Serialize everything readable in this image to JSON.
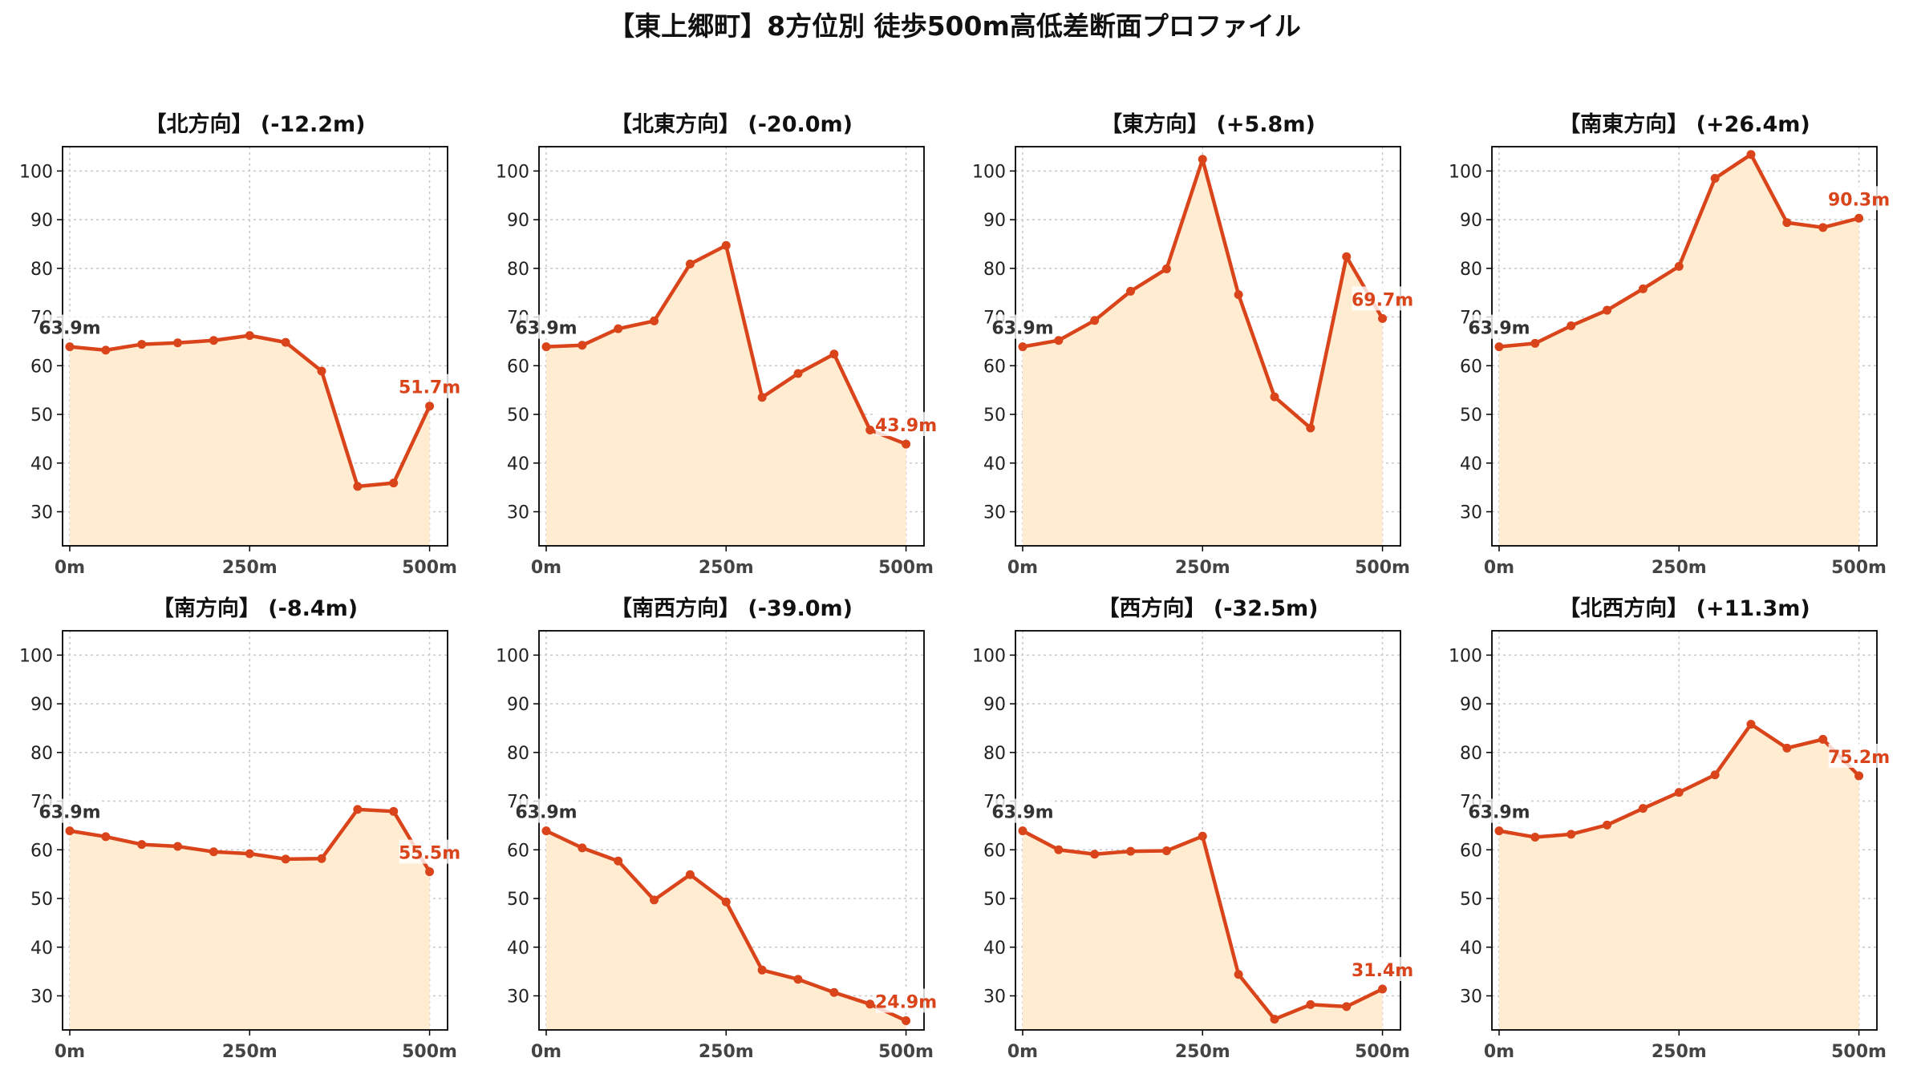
{
  "figure_title": "【東上郷町】8方位別 徒歩500m高低差断面プロファイル",
  "colors": {
    "line": "#d9441a",
    "fill": "#ffecd1",
    "start_label": "#333333",
    "end_label": "#d9441a",
    "grid": "#c8c8c8"
  },
  "chart_data": [
    {
      "type": "area",
      "title": "【北方向】 (-12.2m)",
      "x": [
        0,
        50,
        100,
        150,
        200,
        250,
        300,
        350,
        400,
        450,
        500
      ],
      "y": [
        63.9,
        63.2,
        64.4,
        64.7,
        65.2,
        66.2,
        64.8,
        58.9,
        35.2,
        35.9,
        51.7
      ],
      "x_tick_labels": [
        "0m",
        "250m",
        "500m"
      ],
      "y_ticks": [
        30,
        40,
        50,
        60,
        70,
        80,
        90,
        100
      ],
      "ylim": [
        23,
        105
      ],
      "start_label": "63.9m",
      "end_label": "51.7m",
      "grid": true
    },
    {
      "type": "area",
      "title": "【北東方向】 (-20.0m)",
      "x": [
        0,
        50,
        100,
        150,
        200,
        250,
        300,
        350,
        400,
        450,
        500
      ],
      "y": [
        63.9,
        64.2,
        67.6,
        69.2,
        80.9,
        84.7,
        53.5,
        58.4,
        62.4,
        46.8,
        43.9
      ],
      "x_tick_labels": [
        "0m",
        "250m",
        "500m"
      ],
      "y_ticks": [
        30,
        40,
        50,
        60,
        70,
        80,
        90,
        100
      ],
      "ylim": [
        23,
        105
      ],
      "start_label": "63.9m",
      "end_label": "43.9m",
      "grid": true
    },
    {
      "type": "area",
      "title": "【東方向】 (+5.8m)",
      "x": [
        0,
        50,
        100,
        150,
        200,
        250,
        300,
        350,
        400,
        450,
        500
      ],
      "y": [
        63.9,
        65.2,
        69.3,
        75.3,
        79.9,
        102.4,
        74.6,
        53.6,
        47.2,
        82.4,
        69.7
      ],
      "x_tick_labels": [
        "0m",
        "250m",
        "500m"
      ],
      "y_ticks": [
        30,
        40,
        50,
        60,
        70,
        80,
        90,
        100
      ],
      "ylim": [
        23,
        105
      ],
      "start_label": "63.9m",
      "end_label": "69.7m",
      "grid": true
    },
    {
      "type": "area",
      "title": "【南東方向】 (+26.4m)",
      "x": [
        0,
        50,
        100,
        150,
        200,
        250,
        300,
        350,
        400,
        450,
        500
      ],
      "y": [
        63.9,
        64.6,
        68.2,
        71.4,
        75.8,
        80.4,
        98.5,
        103.4,
        89.4,
        88.4,
        90.3
      ],
      "x_tick_labels": [
        "0m",
        "250m",
        "500m"
      ],
      "y_ticks": [
        30,
        40,
        50,
        60,
        70,
        80,
        90,
        100
      ],
      "ylim": [
        23,
        105
      ],
      "start_label": "63.9m",
      "end_label": "90.3m",
      "grid": true
    },
    {
      "type": "area",
      "title": "【南方向】 (-8.4m)",
      "x": [
        0,
        50,
        100,
        150,
        200,
        250,
        300,
        350,
        400,
        450,
        500
      ],
      "y": [
        63.9,
        62.7,
        61.1,
        60.7,
        59.6,
        59.2,
        58.1,
        58.2,
        68.3,
        67.9,
        55.5
      ],
      "x_tick_labels": [
        "0m",
        "250m",
        "500m"
      ],
      "y_ticks": [
        30,
        40,
        50,
        60,
        70,
        80,
        90,
        100
      ],
      "ylim": [
        23,
        105
      ],
      "start_label": "63.9m",
      "end_label": "55.5m",
      "grid": true
    },
    {
      "type": "area",
      "title": "【南西方向】 (-39.0m)",
      "x": [
        0,
        50,
        100,
        150,
        200,
        250,
        300,
        350,
        400,
        450,
        500
      ],
      "y": [
        63.9,
        60.4,
        57.7,
        49.7,
        54.9,
        49.3,
        35.3,
        33.4,
        30.7,
        28.3,
        24.9
      ],
      "x_tick_labels": [
        "0m",
        "250m",
        "500m"
      ],
      "y_ticks": [
        30,
        40,
        50,
        60,
        70,
        80,
        90,
        100
      ],
      "ylim": [
        23,
        105
      ],
      "start_label": "63.9m",
      "end_label": "24.9m",
      "grid": true
    },
    {
      "type": "area",
      "title": "【西方向】 (-32.5m)",
      "x": [
        0,
        50,
        100,
        150,
        200,
        250,
        300,
        350,
        400,
        450,
        500
      ],
      "y": [
        63.9,
        60.0,
        59.1,
        59.7,
        59.8,
        62.8,
        34.4,
        25.2,
        28.2,
        27.8,
        31.4
      ],
      "x_tick_labels": [
        "0m",
        "250m",
        "500m"
      ],
      "y_ticks": [
        30,
        40,
        50,
        60,
        70,
        80,
        90,
        100
      ],
      "ylim": [
        23,
        105
      ],
      "start_label": "63.9m",
      "end_label": "31.4m",
      "grid": true
    },
    {
      "type": "area",
      "title": "【北西方向】 (+11.3m)",
      "x": [
        0,
        50,
        100,
        150,
        200,
        250,
        300,
        350,
        400,
        450,
        500
      ],
      "y": [
        63.9,
        62.6,
        63.2,
        65.1,
        68.5,
        71.8,
        75.4,
        85.8,
        80.9,
        82.7,
        75.2
      ],
      "x_tick_labels": [
        "0m",
        "250m",
        "500m"
      ],
      "y_ticks": [
        30,
        40,
        50,
        60,
        70,
        80,
        90,
        100
      ],
      "ylim": [
        23,
        105
      ],
      "start_label": "63.9m",
      "end_label": "75.2m",
      "grid": true
    }
  ]
}
